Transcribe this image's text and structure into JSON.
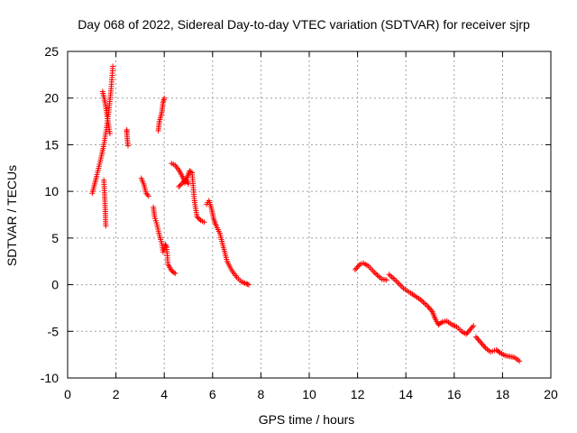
{
  "chart_data": {
    "type": "scatter",
    "title": "Day 068 of 2022, Sidereal Day-to-day VTEC variation (SDTVAR) for receiver sjrp",
    "xlabel": "GPS time / hours",
    "ylabel": "SDTVAR / TECUs",
    "xlim": [
      0,
      20
    ],
    "ylim": [
      -10,
      25
    ],
    "xticks": [
      0,
      2,
      4,
      6,
      8,
      10,
      12,
      14,
      16,
      18,
      20
    ],
    "yticks": [
      -10,
      -5,
      0,
      5,
      10,
      15,
      20,
      25
    ],
    "grid": true,
    "marker": "+",
    "series": [
      {
        "name": "SDTVAR",
        "color": "#ff0000",
        "segments": [
          [
            [
              1.02,
              9.8
            ],
            [
              1.1,
              10.6
            ],
            [
              1.2,
              11.6
            ],
            [
              1.3,
              12.7
            ],
            [
              1.4,
              13.8
            ],
            [
              1.5,
              15.0
            ],
            [
              1.6,
              16.6
            ],
            [
              1.7,
              18.5
            ],
            [
              1.8,
              21.0
            ],
            [
              1.87,
              23.4
            ]
          ],
          [
            [
              1.45,
              20.7
            ],
            [
              1.55,
              19.5
            ],
            [
              1.65,
              17.8
            ],
            [
              1.75,
              16.2
            ]
          ],
          [
            [
              1.5,
              11.2
            ],
            [
              1.55,
              8.5
            ],
            [
              1.58,
              6.3
            ]
          ],
          [
            [
              2.45,
              16.6
            ],
            [
              2.45,
              16.3
            ],
            [
              2.48,
              15.3
            ],
            [
              2.5,
              14.9
            ]
          ],
          [
            [
              3.05,
              11.4
            ],
            [
              3.15,
              10.8
            ],
            [
              3.25,
              9.8
            ],
            [
              3.35,
              9.5
            ]
          ],
          [
            [
              3.55,
              8.3
            ],
            [
              3.6,
              7.3
            ],
            [
              3.7,
              6.4
            ],
            [
              3.8,
              5.3
            ],
            [
              3.9,
              4.4
            ],
            [
              3.95,
              3.5
            ],
            [
              4.05,
              4.3
            ],
            [
              4.1,
              4.0
            ],
            [
              4.15,
              2.2
            ],
            [
              4.3,
              1.5
            ],
            [
              4.45,
              1.2
            ]
          ],
          [
            [
              3.75,
              16.5
            ],
            [
              3.8,
              17.5
            ],
            [
              3.9,
              18.5
            ],
            [
              3.95,
              19.5
            ],
            [
              4.0,
              20.0
            ]
          ],
          [
            [
              4.3,
              13.0
            ],
            [
              4.45,
              12.8
            ],
            [
              4.6,
              12.3
            ],
            [
              4.75,
              11.6
            ],
            [
              4.85,
              10.9
            ],
            [
              4.95,
              11.5
            ],
            [
              5.05,
              12.2
            ],
            [
              5.15,
              12.0
            ],
            [
              5.25,
              9.0
            ],
            [
              5.35,
              7.3
            ],
            [
              5.5,
              6.9
            ],
            [
              5.65,
              6.7
            ]
          ],
          [
            [
              4.6,
              10.5
            ],
            [
              4.75,
              10.9
            ],
            [
              4.9,
              11.3
            ],
            [
              5.0,
              10.8
            ]
          ],
          [
            [
              5.75,
              8.6
            ],
            [
              5.85,
              9.0
            ],
            [
              5.95,
              8.2
            ],
            [
              6.05,
              7.0
            ],
            [
              6.15,
              6.3
            ],
            [
              6.3,
              5.5
            ],
            [
              6.45,
              4.0
            ],
            [
              6.6,
              2.5
            ],
            [
              6.8,
              1.5
            ],
            [
              7.0,
              0.8
            ],
            [
              7.2,
              0.3
            ],
            [
              7.4,
              0.1
            ],
            [
              7.5,
              0.0
            ]
          ],
          [
            [
              11.9,
              1.6
            ],
            [
              12.1,
              2.2
            ],
            [
              12.25,
              2.3
            ],
            [
              12.45,
              2.0
            ],
            [
              12.7,
              1.3
            ],
            [
              13.0,
              0.6
            ],
            [
              13.2,
              0.5
            ]
          ],
          [
            [
              13.3,
              1.1
            ],
            [
              13.6,
              0.4
            ],
            [
              13.9,
              -0.4
            ],
            [
              14.2,
              -0.9
            ],
            [
              14.6,
              -1.6
            ],
            [
              14.9,
              -2.3
            ],
            [
              15.1,
              -2.9
            ],
            [
              15.2,
              -3.6
            ],
            [
              15.35,
              -4.3
            ],
            [
              15.5,
              -4.0
            ],
            [
              15.7,
              -3.9
            ],
            [
              15.9,
              -4.3
            ],
            [
              16.1,
              -4.5
            ],
            [
              16.3,
              -5.0
            ],
            [
              16.5,
              -5.3
            ],
            [
              16.7,
              -4.7
            ],
            [
              16.8,
              -4.4
            ]
          ],
          [
            [
              16.9,
              -5.6
            ],
            [
              17.1,
              -6.2
            ],
            [
              17.3,
              -6.8
            ],
            [
              17.5,
              -7.2
            ],
            [
              17.75,
              -7.0
            ],
            [
              17.9,
              -7.3
            ],
            [
              18.1,
              -7.6
            ],
            [
              18.3,
              -7.7
            ],
            [
              18.5,
              -7.8
            ],
            [
              18.7,
              -8.2
            ]
          ]
        ]
      }
    ]
  }
}
